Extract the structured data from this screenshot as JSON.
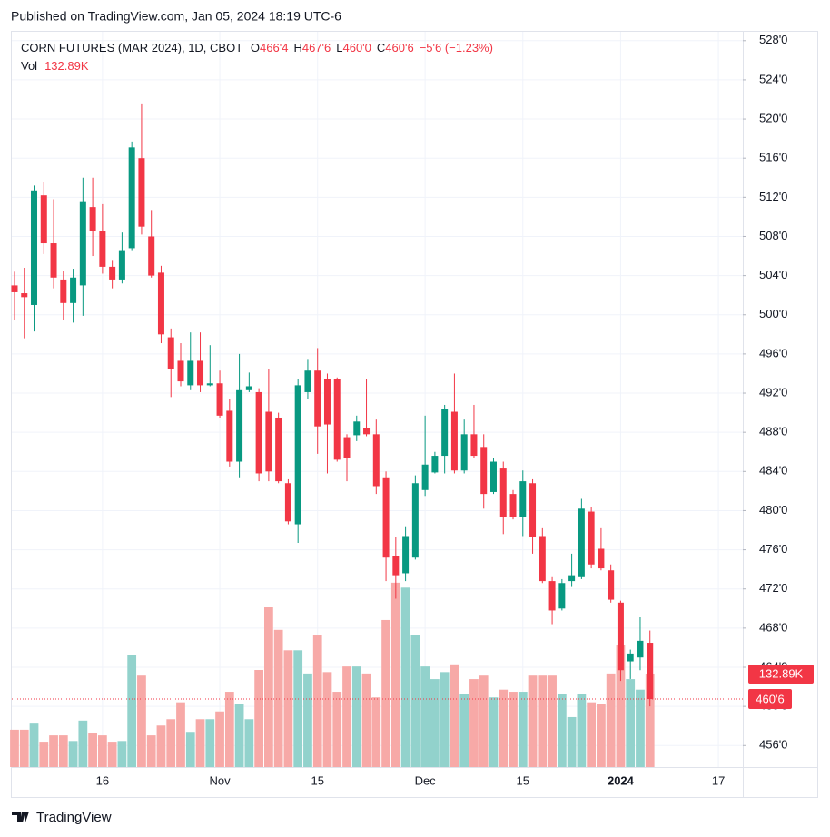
{
  "chart_data": {
    "type": "candlestick",
    "header": "Published on TradingView.com, Jan 05, 2024 18:19 UTC-6",
    "title": "CORN FUTURES (MAR 2024), 1D, CBOT",
    "ohlc_legend": [
      {
        "key": "O",
        "value": "466'4"
      },
      {
        "key": "H",
        "value": "467'6"
      },
      {
        "key": "L",
        "value": "460'0"
      },
      {
        "key": "C",
        "value": "460'6"
      }
    ],
    "change": "−5'6 (−1.23%)",
    "volume_name": "Vol",
    "volume_label": "132.89K",
    "close_label": "460'6",
    "footer": "TradingView",
    "up_color": "#089981",
    "down_color": "#f23645",
    "up_volume_color": "#92d2cc",
    "down_volume_color": "#f7a9a7",
    "grid": true,
    "open": [
      503.0,
      502.2,
      501.0,
      512.2,
      507.3,
      503.6,
      501.2,
      503.0,
      511.0,
      508.6,
      504.9,
      503.6,
      506.8,
      516.0,
      508.0,
      504.3,
      497.7,
      495.3,
      492.8,
      495.3,
      492.8,
      493.0,
      490.2,
      485.0,
      492.3,
      492.1,
      490.1,
      489.5,
      482.8,
      478.6,
      492.1,
      494.3,
      493.4,
      493.4,
      487.5,
      487.7,
      488.4,
      487.8,
      483.4,
      475.4,
      473.6,
      475.2,
      482.1,
      483.9,
      485.6,
      490.1,
      484.1,
      487.8,
      486.5,
      481.9,
      484.3,
      481.7,
      479.3,
      482.8,
      477.4,
      472.8,
      470.0,
      472.8,
      473.2,
      479.9,
      476.1,
      473.9,
      470.6,
      464.6,
      465.0,
      466.5
    ],
    "high": [
      504.4,
      504.8,
      513.2,
      513.6,
      511.8,
      504.5,
      504.7,
      514.0,
      514.0,
      511.3,
      505.6,
      508.4,
      517.7,
      521.5,
      510.7,
      505.0,
      498.6,
      497.1,
      498.2,
      498.2,
      496.9,
      494.3,
      491.4,
      496.0,
      494.1,
      492.5,
      494.5,
      490.0,
      483.2,
      493.4,
      495.4,
      496.6,
      494.0,
      493.6,
      487.8,
      489.7,
      493.4,
      489.3,
      484.0,
      477.3,
      478.4,
      483.6,
      489.7,
      486.0,
      490.8,
      494.0,
      489.3,
      490.8,
      487.8,
      485.4,
      485.0,
      482.1,
      484.1,
      483.2,
      478.2,
      473.2,
      473.0,
      475.6,
      481.2,
      480.4,
      478.2,
      474.5,
      470.8,
      465.8,
      469.1,
      467.75
    ],
    "low": [
      499.5,
      497.6,
      498.3,
      506.2,
      502.7,
      499.5,
      499.2,
      499.9,
      506.0,
      504.2,
      502.7,
      503.2,
      506.6,
      508.2,
      503.8,
      497.1,
      491.6,
      492.7,
      492.3,
      492.1,
      492.7,
      489.5,
      484.5,
      483.4,
      492.1,
      483.0,
      483.0,
      482.8,
      478.6,
      476.7,
      491.4,
      485.8,
      483.8,
      485.0,
      483.0,
      487.1,
      487.6,
      481.7,
      472.8,
      471.0,
      472.8,
      475.0,
      481.5,
      483.8,
      483.8,
      483.8,
      483.8,
      485.4,
      480.2,
      481.7,
      477.6,
      479.1,
      477.4,
      475.6,
      472.6,
      468.4,
      469.8,
      472.2,
      473.0,
      474.1,
      473.9,
      470.6,
      462.6,
      462.8,
      463.7,
      460.0
    ],
    "close": [
      502.3,
      501.8,
      512.7,
      507.3,
      503.8,
      501.2,
      503.8,
      511.6,
      508.6,
      504.9,
      503.6,
      506.6,
      517.1,
      509.0,
      504.0,
      498.0,
      494.5,
      493.2,
      495.3,
      492.8,
      493.0,
      489.7,
      485.0,
      492.3,
      492.7,
      483.8,
      484.0,
      483.0,
      478.9,
      492.8,
      494.3,
      488.6,
      488.8,
      485.2,
      485.4,
      489.1,
      487.8,
      482.5,
      475.2,
      473.4,
      477.4,
      482.8,
      484.7,
      485.6,
      490.4,
      484.1,
      487.8,
      485.6,
      481.7,
      485.0,
      479.3,
      479.3,
      483.0,
      477.3,
      472.8,
      469.8,
      472.6,
      473.4,
      480.2,
      474.5,
      474.1,
      470.9,
      463.7,
      465.4,
      466.7,
      460.75
    ],
    "volume": [
      53,
      53,
      63,
      36,
      45,
      45,
      37,
      66,
      49,
      45,
      36,
      37,
      159,
      130,
      45,
      59,
      68,
      92,
      50,
      68,
      68,
      79,
      107,
      89,
      68,
      138,
      227,
      195,
      166,
      166,
      133,
      187,
      135,
      107,
      143,
      143,
      133,
      99,
      209,
      262,
      255,
      188,
      143,
      125,
      135,
      146,
      104,
      125,
      130,
      99,
      110,
      107,
      107,
      130,
      130,
      130,
      104,
      71,
      104,
      92,
      89,
      133,
      174,
      125,
      110,
      132.89
    ],
    "volume_lim": [
      0,
      1046
    ],
    "xlim": [
      -0.37,
      74.5
    ],
    "xticks": [
      {
        "value": 9,
        "label": "16"
      },
      {
        "value": 21,
        "label": "Nov"
      },
      {
        "value": 31,
        "label": "15"
      },
      {
        "value": 42,
        "label": "Dec"
      },
      {
        "value": 52,
        "label": "15"
      },
      {
        "value": 62,
        "label": "2024"
      },
      {
        "value": 72,
        "label": "17"
      }
    ],
    "ylim": [
      453.8,
      529.0
    ],
    "yticks": [
      {
        "value": 456,
        "label": "456'0"
      },
      {
        "value": 460,
        "label": "460'0"
      },
      {
        "value": 464,
        "label": "464'0"
      },
      {
        "value": 468,
        "label": "468'0"
      },
      {
        "value": 472,
        "label": "472'0"
      },
      {
        "value": 476,
        "label": "476'0"
      },
      {
        "value": 480,
        "label": "480'0"
      },
      {
        "value": 484,
        "label": "484'0"
      },
      {
        "value": 488,
        "label": "488'0"
      },
      {
        "value": 492,
        "label": "492'0"
      },
      {
        "value": 496,
        "label": "496'0"
      },
      {
        "value": 500,
        "label": "500'0"
      },
      {
        "value": 504,
        "label": "504'0"
      },
      {
        "value": 508,
        "label": "508'0"
      },
      {
        "value": 512,
        "label": "512'0"
      },
      {
        "value": 516,
        "label": "516'0"
      },
      {
        "value": 520,
        "label": "520'0"
      },
      {
        "value": 524,
        "label": "524'0"
      },
      {
        "value": 528,
        "label": "528'0"
      }
    ]
  }
}
